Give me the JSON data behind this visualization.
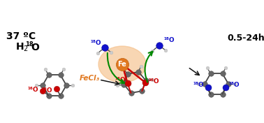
{
  "bg_color": "#ffffff",
  "title_left_line1": "37 ºC",
  "title_left_h2o": "H₂¹⁸O",
  "title_right": "0.5-24h",
  "fe_label": "Fe",
  "fecl3_label": "FeCl₃",
  "lbl_16O": "¹⁶O",
  "lbl_18O": "¹⁸O",
  "glow_color": "#f5c08a",
  "fe_color": "#e07820",
  "o_red_color": "#cc0000",
  "o_blue_color": "#1111cc",
  "fecl3_color": "#e07820",
  "arrow_black_color": "#111111",
  "arrow_green_color": "#008800",
  "carbon_color": "#666666",
  "carbon_dark": "#444444",
  "hydrogen_color": "#cccccc",
  "bond_color": "#444444",
  "bond_lw": 1.3,
  "carbon_ms": 5.5,
  "hydrogen_ms": 3.5
}
